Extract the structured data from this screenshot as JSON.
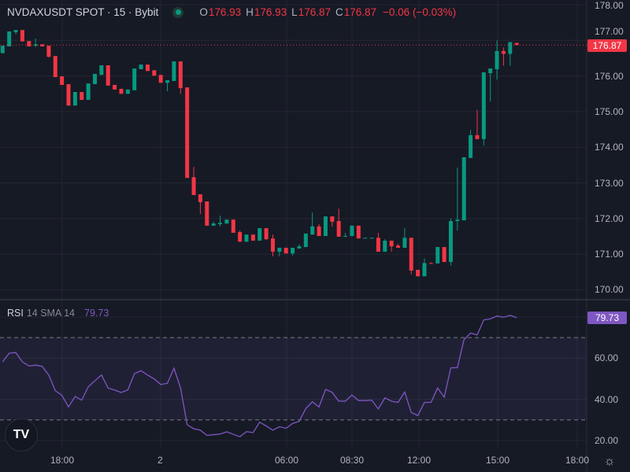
{
  "header": {
    "symbol": "NVDAXUSDT SPOT · 15 · Bybit",
    "status": "market-open-dot",
    "o_label": "O",
    "o": "176.93",
    "h_label": "H",
    "h": "176.93",
    "l_label": "L",
    "l": "176.87",
    "c_label": "C",
    "c": "176.87",
    "change": "−0.06 (−0.03%)"
  },
  "price_axis": {
    "labels": [
      "178.00",
      "177.00",
      "176.00",
      "175.00",
      "174.00",
      "173.00",
      "172.00",
      "171.00",
      "170.00"
    ],
    "last_price": "176.87"
  },
  "rsi": {
    "name": "RSI",
    "params": "14 SMA 14",
    "value": "79.73",
    "axis_labels": [
      "60.00",
      "40.00",
      "20.00"
    ]
  },
  "time_axis": {
    "labels": [
      "18:00",
      "2",
      "06:00",
      "08:30",
      "12:00",
      "15:00",
      "18:00"
    ]
  },
  "colors": {
    "up": "#089981",
    "down": "#f23645",
    "rsi": "#7e57c2",
    "background": "#161a25",
    "grid": "#242733"
  },
  "icons": {
    "logo": "tradingview-logo",
    "settings": "sun-settings-icon"
  },
  "chart_data": [
    {
      "type": "candlestick",
      "title": "NVDAXUSDT SPOT · 15 · Bybit",
      "ylim": [
        170,
        178
      ],
      "grid": true,
      "last_price": 176.87,
      "ohlc": [
        [
          176.64,
          176.85,
          176.64,
          176.85
        ],
        [
          176.83,
          177.25,
          176.83,
          177.25
        ],
        [
          177.23,
          177.29,
          177.17,
          177.29
        ],
        [
          177.29,
          177.29,
          176.97,
          176.97
        ],
        [
          176.98,
          176.98,
          176.83,
          176.83
        ],
        [
          176.85,
          177.05,
          176.81,
          176.89
        ],
        [
          176.89,
          176.89,
          176.83,
          176.83
        ],
        [
          176.85,
          176.85,
          176.52,
          176.54
        ],
        [
          176.56,
          176.56,
          175.97,
          175.97
        ],
        [
          175.99,
          175.99,
          175.75,
          175.75
        ],
        [
          175.77,
          175.77,
          175.17,
          175.17
        ],
        [
          175.17,
          175.55,
          175.17,
          175.55
        ],
        [
          175.55,
          175.55,
          175.33,
          175.33
        ],
        [
          175.33,
          175.79,
          175.33,
          175.79
        ],
        [
          175.77,
          176.06,
          175.77,
          176.06
        ],
        [
          176.03,
          176.3,
          176.03,
          176.3
        ],
        [
          176.3,
          176.3,
          175.73,
          175.73
        ],
        [
          175.75,
          175.75,
          175.62,
          175.62
        ],
        [
          175.64,
          175.64,
          175.5,
          175.5
        ],
        [
          175.5,
          175.62,
          175.5,
          175.62
        ],
        [
          175.6,
          176.21,
          175.6,
          176.21
        ],
        [
          176.19,
          176.32,
          176.19,
          176.32
        ],
        [
          176.32,
          176.32,
          176.14,
          176.14
        ],
        [
          176.16,
          176.16,
          176.01,
          176.01
        ],
        [
          176.03,
          176.03,
          175.81,
          175.81
        ],
        [
          175.81,
          175.88,
          175.57,
          175.88
        ],
        [
          175.86,
          176.41,
          175.86,
          176.41
        ],
        [
          176.41,
          176.41,
          175.5,
          175.66
        ],
        [
          175.68,
          175.68,
          173.14,
          173.14
        ],
        [
          173.16,
          173.45,
          172.66,
          172.66
        ],
        [
          172.68,
          172.68,
          172.13,
          172.46
        ],
        [
          172.48,
          172.48,
          171.8,
          171.8
        ],
        [
          171.8,
          171.91,
          171.8,
          171.86
        ],
        [
          171.84,
          172.08,
          171.78,
          171.88
        ],
        [
          171.86,
          171.97,
          171.86,
          171.97
        ],
        [
          171.97,
          171.97,
          171.6,
          171.6
        ],
        [
          171.62,
          171.66,
          171.35,
          171.35
        ],
        [
          171.35,
          171.55,
          171.35,
          171.55
        ],
        [
          171.55,
          171.55,
          171.38,
          171.38
        ],
        [
          171.38,
          171.73,
          171.38,
          171.73
        ],
        [
          171.73,
          171.73,
          171.4,
          171.42
        ],
        [
          171.44,
          171.55,
          170.94,
          171.07
        ],
        [
          171.07,
          171.18,
          170.94,
          171.18
        ],
        [
          171.18,
          171.18,
          171.02,
          171.02
        ],
        [
          171.02,
          171.18,
          170.96,
          171.18
        ],
        [
          171.16,
          171.28,
          171.16,
          171.22
        ],
        [
          171.2,
          171.58,
          171.2,
          171.58
        ],
        [
          171.55,
          172.17,
          171.55,
          171.78
        ],
        [
          171.78,
          171.84,
          171.51,
          171.51
        ],
        [
          171.51,
          172.06,
          171.51,
          172.06
        ],
        [
          172.06,
          172.06,
          171.77,
          171.91
        ],
        [
          171.93,
          172.28,
          171.49,
          171.49
        ],
        [
          171.49,
          171.6,
          171.49,
          171.51
        ],
        [
          171.51,
          171.8,
          171.51,
          171.8
        ],
        [
          171.8,
          171.8,
          171.44,
          171.44
        ],
        [
          171.44,
          171.46,
          171.44,
          171.46
        ],
        [
          171.46,
          171.46,
          171.45,
          171.46
        ],
        [
          171.46,
          171.6,
          171.07,
          171.07
        ],
        [
          171.07,
          171.42,
          171.07,
          171.38
        ],
        [
          171.38,
          171.38,
          171.07,
          171.22
        ],
        [
          171.24,
          171.29,
          171.18,
          171.18
        ],
        [
          171.18,
          171.73,
          171.18,
          171.46
        ],
        [
          171.46,
          171.46,
          170.43,
          170.54
        ],
        [
          170.56,
          170.56,
          170.38,
          170.38
        ],
        [
          170.38,
          170.88,
          170.38,
          170.75
        ],
        [
          170.75,
          170.77,
          170.73,
          170.73
        ],
        [
          170.74,
          171.2,
          170.74,
          171.2
        ],
        [
          171.2,
          171.2,
          170.78,
          170.78
        ],
        [
          170.78,
          172.0,
          170.68,
          171.93
        ],
        [
          171.93,
          173.43,
          171.66,
          171.97
        ],
        [
          171.95,
          173.72,
          171.95,
          173.72
        ],
        [
          173.7,
          174.49,
          173.7,
          174.34
        ],
        [
          174.34,
          175.05,
          174.23,
          174.23
        ],
        [
          174.23,
          176.1,
          174.05,
          176.1
        ],
        [
          176.08,
          176.21,
          175.28,
          176.21
        ],
        [
          176.19,
          177.0,
          175.9,
          176.7
        ],
        [
          176.7,
          176.8,
          176.29,
          176.62
        ],
        [
          176.62,
          176.95,
          176.29,
          176.95
        ],
        [
          176.93,
          176.93,
          176.87,
          176.87
        ]
      ]
    },
    {
      "type": "line",
      "title": "RSI 14 SMA 14",
      "ylim": [
        15,
        90
      ],
      "band": [
        30,
        70
      ],
      "values": [
        58.2,
        62.4,
        62.7,
        58.2,
        56.2,
        56.6,
        56.0,
        51.8,
        44.2,
        41.9,
        36.3,
        41.4,
        39.6,
        46.1,
        49.0,
        51.8,
        45.5,
        44.5,
        43.3,
        44.6,
        52.5,
        53.9,
        51.8,
        49.9,
        47.2,
        47.8,
        55.1,
        45.5,
        27.6,
        25.7,
        25.0,
        22.5,
        22.8,
        23.1,
        24.2,
        23.0,
        21.8,
        24.3,
        23.8,
        28.9,
        27.0,
        25.0,
        26.7,
        25.9,
        28.3,
        29.3,
        35.5,
        38.8,
        36.3,
        44.8,
        43.4,
        39.1,
        39.1,
        42.1,
        39.4,
        39.4,
        39.6,
        35.3,
        40.7,
        39.1,
        38.5,
        43.5,
        33.6,
        32.1,
        38.5,
        38.5,
        45.5,
        41.0,
        55.3,
        55.4,
        69.0,
        72.2,
        71.3,
        78.6,
        79.1,
        80.5,
        79.9,
        80.8,
        79.73
      ]
    }
  ]
}
